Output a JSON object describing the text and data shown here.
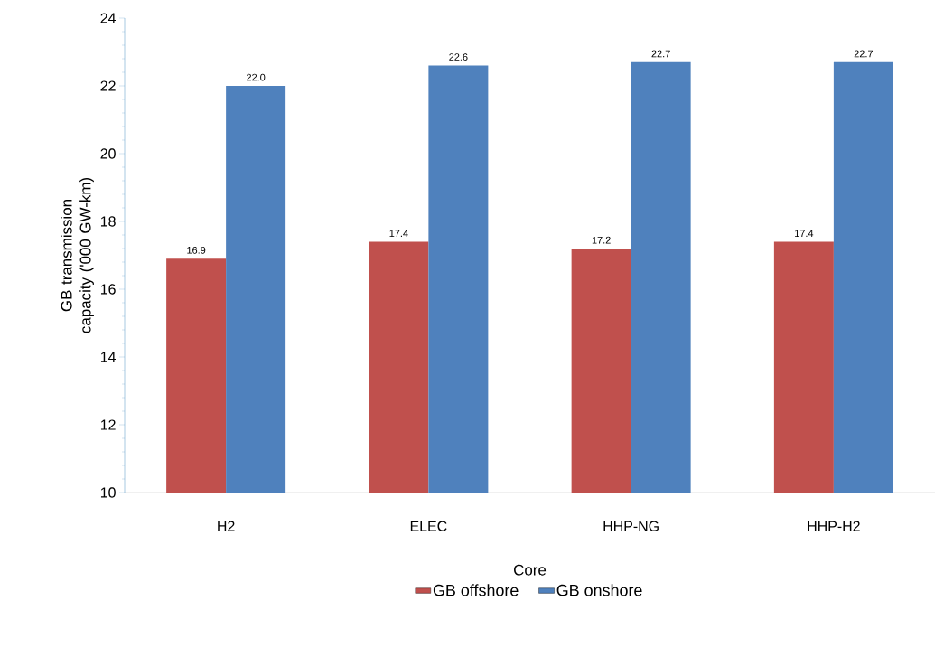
{
  "chart_data": {
    "type": "bar",
    "xlabel": "Core",
    "ylabel": "GB transmission capacity ('000 GW-km)",
    "categories": [
      "H2",
      "ELEC",
      "HHP-NG",
      "HHP-H2"
    ],
    "series": [
      {
        "name": "GB offshore",
        "color": "#c0504d",
        "values": [
          16.9,
          17.4,
          17.2,
          17.4
        ],
        "value_labels": [
          "16.9",
          "17.4",
          "17.2",
          "17.4"
        ]
      },
      {
        "name": "GB onshore",
        "color": "#4f81bd",
        "values": [
          22.0,
          22.6,
          22.7,
          22.7
        ],
        "value_labels": [
          "22.0",
          "22.6",
          "22.7",
          "22.7"
        ]
      }
    ],
    "ylim": [
      10,
      24
    ],
    "yticks": [
      10,
      12,
      14,
      16,
      18,
      20,
      22,
      24
    ],
    "grid": false,
    "legend": "bottom"
  }
}
